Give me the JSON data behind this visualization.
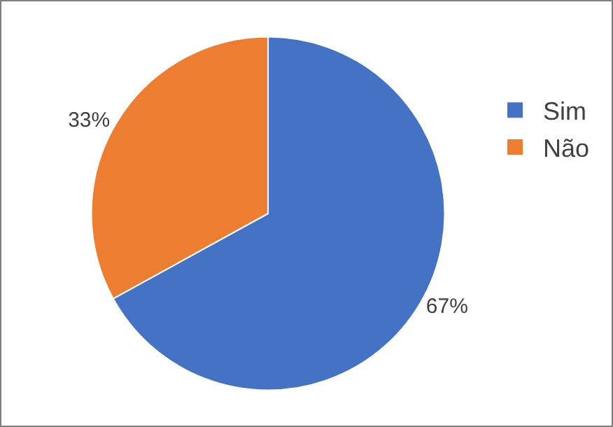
{
  "chart_data": {
    "type": "pie",
    "categories": [
      "Sim",
      "Não"
    ],
    "values": [
      67,
      33
    ],
    "colors": [
      "#4472c4",
      "#ed7d31"
    ],
    "value_labels": [
      "67%",
      "33%"
    ],
    "legend": "right"
  }
}
